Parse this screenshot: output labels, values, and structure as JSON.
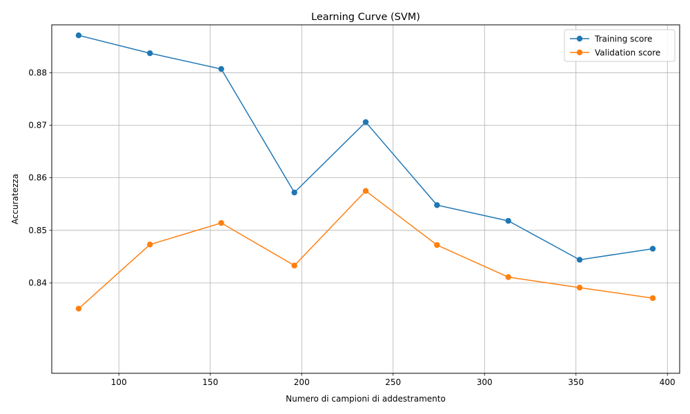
{
  "chart_data": {
    "type": "line",
    "title": "Learning Curve (SVM)",
    "xlabel": "Numero di campioni di addestramento",
    "ylabel": "Accuratezza",
    "xlim": [
      63.3,
      406.7
    ],
    "ylim": [
      0.8228,
      0.8891
    ],
    "xticks": [
      100,
      150,
      200,
      250,
      300,
      350,
      400
    ],
    "yticks": [
      0.84,
      0.85,
      0.86,
      0.87,
      0.88
    ],
    "grid": true,
    "legend_position": "top-right",
    "x": [
      78,
      117,
      156,
      196,
      235,
      274,
      313,
      352,
      392
    ],
    "series": [
      {
        "name": "Training score",
        "color": "#1f77b4",
        "values": [
          0.8871,
          0.8837,
          0.8807,
          0.8572,
          0.8706,
          0.8548,
          0.8518,
          0.8444,
          0.8465
        ]
      },
      {
        "name": "Validation score",
        "color": "#ff7f0e",
        "values": [
          0.8351,
          0.8473,
          0.8514,
          0.8433,
          0.8575,
          0.8472,
          0.8411,
          0.8391,
          0.8371
        ]
      }
    ]
  }
}
